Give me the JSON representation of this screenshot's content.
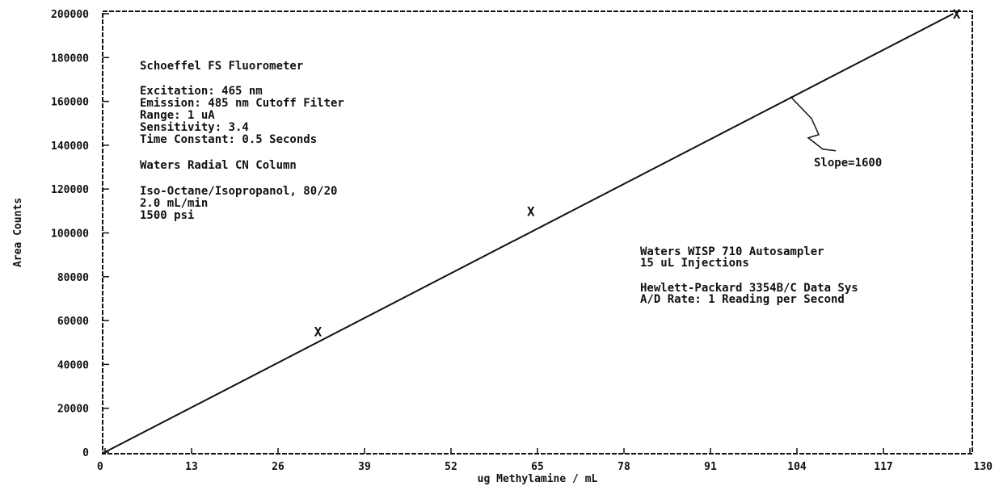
{
  "chart_data": {
    "type": "line",
    "xlabel": "ug Methylamine / mL",
    "ylabel": "Area Counts",
    "xlim": [
      0,
      130
    ],
    "ylim": [
      0,
      200000
    ],
    "x_ticks": [
      "0",
      "13",
      "26",
      "39",
      "52",
      "65",
      "78",
      "91",
      "104",
      "117",
      "130"
    ],
    "y_ticks": [
      "0",
      "20000",
      "40000",
      "60000",
      "80000",
      "100000",
      "120000",
      "140000",
      "160000",
      "180000",
      "200000"
    ],
    "series": [
      {
        "kind": "fit-line",
        "x": [
          0,
          127.5
        ],
        "y": [
          0,
          200000
        ]
      },
      {
        "kind": "points",
        "marker": "X",
        "x": [
          32,
          64,
          128
        ],
        "y": [
          55000,
          110000,
          200000
        ]
      }
    ],
    "slope_label": "Slope=1600",
    "slope_arrow_at": [
      104,
      164000
    ],
    "annotations_left": [
      [
        "Schoeffel FS Fluorometer"
      ],
      [
        "Excitation: 465 nm",
        "Emission: 485 nm Cutoff Filter",
        "Range: 1 uA",
        "Sensitivity: 3.4",
        "Time Constant: 0.5 Seconds"
      ],
      [
        "Waters Radial CN Column"
      ],
      [
        "Iso-Octane/Isopropanol, 80/20",
        "2.0 mL/min",
        "1500 psi"
      ]
    ],
    "annotations_right": [
      [
        "Waters WISP 710 Autosampler",
        "15 uL Injections"
      ],
      [
        "Hewlett-Packard 3354B/C Data Sys",
        "A/D Rate: 1 Reading per Second"
      ]
    ],
    "grid": false,
    "legend": "none",
    "colors": {
      "ink": "#111111",
      "background": "#ffffff"
    }
  }
}
